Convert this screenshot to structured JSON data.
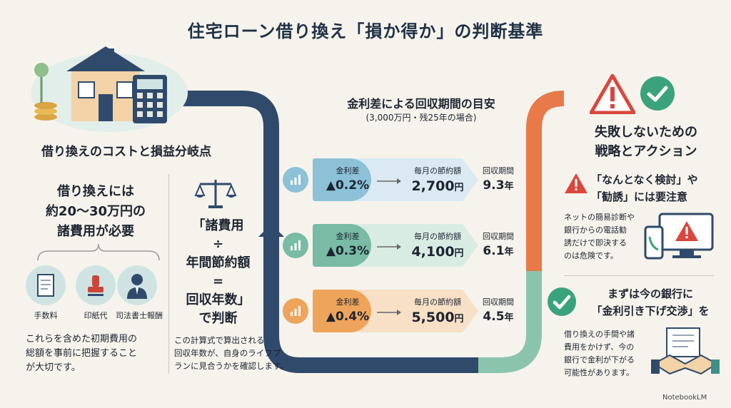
{
  "title": "住宅ローン借り換え「損か得か」の判断基準",
  "left": {
    "section_title": "借り換えのコストと損益分岐点",
    "cost_lines": [
      "借り換えには",
      "約20〜30万円の",
      "諸費用が必要"
    ],
    "items": [
      {
        "label": "手数料",
        "icon": "document-icon"
      },
      {
        "label": "印紙代",
        "icon": "stamp-icon"
      },
      {
        "label": "司法書士報酬",
        "icon": "lawyer-icon"
      }
    ],
    "note_lines": [
      "これらを含めた初期費用の",
      "総額を事前に把握すること",
      "が大切です。"
    ],
    "formula_lines": [
      "「諸費用",
      "÷",
      "年間節約額",
      "=",
      "回収年数」",
      "で判断"
    ],
    "formula_note_lines": [
      "この計算式で算出される",
      "回収年数が、自身のライフプ",
      "ランに見合うかを確認します。"
    ]
  },
  "middle": {
    "title": "金利差による回収期間の目安",
    "subtitle": "(3,000万円・残25年の場合)",
    "rows": [
      {
        "k1": "金利差",
        "v1": "▲0.2%",
        "k2": "毎月の節約額",
        "v2_num": "2,700",
        "v2_unit": "円",
        "k3": "回収期間",
        "v3_num": "9.3",
        "v3_unit": "年",
        "color": "#8cc1d8",
        "light": "#dbeaf2",
        "icon": "chart-icon"
      },
      {
        "k1": "金利差",
        "v1": "▲0.3%",
        "k2": "毎月の節約額",
        "v2_num": "4,100",
        "v2_unit": "円",
        "k3": "回収期間",
        "v3_num": "6.1",
        "v3_unit": "年",
        "color": "#79bba5",
        "light": "#d9ece4",
        "icon": "coins-icon"
      },
      {
        "k1": "金利差",
        "v1": "▲0.4%",
        "k2": "毎月の節約額",
        "v2_num": "5,500",
        "v2_unit": "円",
        "k3": "回収期間",
        "v3_num": "4.5",
        "v3_unit": "年",
        "color": "#eea45a",
        "light": "#f7e0c6",
        "icon": "coins-stack-icon"
      }
    ]
  },
  "right": {
    "title_lines": [
      "失敗しないための",
      "戦略とアクション"
    ],
    "warn_lines": [
      "「なんとなく検討」や",
      "「勧誘」には要注意"
    ],
    "warn_note_lines": [
      "ネットの簡易診断や",
      "銀行からの電話勧",
      "誘だけで即決する",
      "のは危険です。"
    ],
    "action_lines": [
      "まずは今の銀行に",
      "「金利引き下げ交渉」を"
    ],
    "action_note_lines": [
      "借り換えの手間や諸",
      "費用をかけず、今の",
      "銀行で金利が下がる",
      "可能性があります。"
    ]
  },
  "footer": {
    "logo": "NotebookLM"
  },
  "colors": {
    "navy": "#2f4a6b",
    "teal": "#3f8f86",
    "orange": "#e87a4a",
    "warn_red": "#d9473d",
    "check_green": "#3aa37c"
  }
}
